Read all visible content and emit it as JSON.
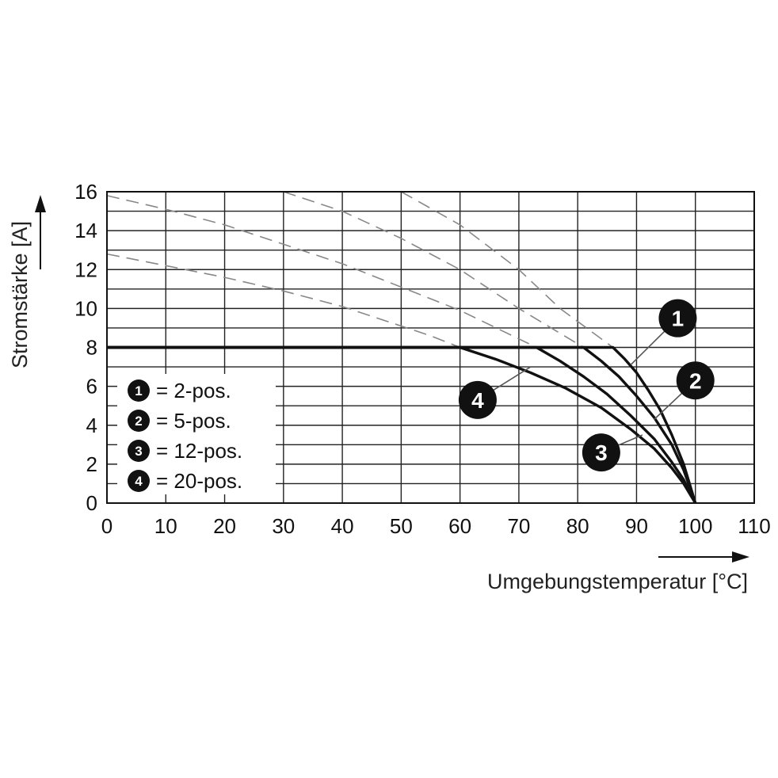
{
  "chart_data": {
    "type": "line",
    "xlabel": "Umgebungstemperatur [°C]",
    "ylabel": "Stromstärke [A]",
    "xlim": [
      0,
      110
    ],
    "ylim": [
      0,
      16
    ],
    "x_ticks": [
      "0",
      "10",
      "20",
      "30",
      "40",
      "50",
      "60",
      "70",
      "80",
      "90",
      "100",
      "110"
    ],
    "y_ticks": [
      "0",
      "2",
      "4",
      "6",
      "8",
      "10",
      "12",
      "14",
      "16"
    ],
    "grid": {
      "x_step": 10,
      "y_step": 1
    },
    "legend": {
      "placement": "lower-left",
      "entries": [
        {
          "badge": "1",
          "text": "= 2-pos."
        },
        {
          "badge": "2",
          "text": "= 5-pos."
        },
        {
          "badge": "3",
          "text": "= 12-pos."
        },
        {
          "badge": "4",
          "text": "= 20-pos."
        }
      ]
    },
    "series": [
      {
        "badge": "1",
        "style": "solid",
        "points": [
          [
            0,
            8
          ],
          [
            86,
            8
          ],
          [
            88,
            7.4
          ],
          [
            90,
            6.7
          ],
          [
            92,
            5.8
          ],
          [
            94,
            4.8
          ],
          [
            96,
            3.5
          ],
          [
            98,
            2.0
          ],
          [
            100,
            0
          ]
        ]
      },
      {
        "badge": "2",
        "style": "solid",
        "points": [
          [
            0,
            8
          ],
          [
            81,
            8
          ],
          [
            84,
            7.3
          ],
          [
            87,
            6.5
          ],
          [
            90,
            5.5
          ],
          [
            93,
            4.4
          ],
          [
            96,
            3.0
          ],
          [
            98,
            1.7
          ],
          [
            100,
            0
          ]
        ]
      },
      {
        "badge": "3",
        "style": "solid",
        "points": [
          [
            0,
            8
          ],
          [
            73,
            8
          ],
          [
            77,
            7.3
          ],
          [
            81,
            6.5
          ],
          [
            85,
            5.6
          ],
          [
            89,
            4.5
          ],
          [
            93,
            3.3
          ],
          [
            96,
            2.1
          ],
          [
            98,
            1.2
          ],
          [
            100,
            0
          ]
        ]
      },
      {
        "badge": "4",
        "style": "solid",
        "points": [
          [
            0,
            8
          ],
          [
            60,
            8
          ],
          [
            66,
            7.4
          ],
          [
            72,
            6.7
          ],
          [
            78,
            5.9
          ],
          [
            84,
            4.9
          ],
          [
            89,
            3.8
          ],
          [
            93,
            2.8
          ],
          [
            96,
            1.8
          ],
          [
            98,
            1.0
          ],
          [
            100,
            0
          ]
        ]
      },
      {
        "style": "dashed",
        "points": [
          [
            0,
            12.8
          ],
          [
            10,
            12.2
          ],
          [
            20,
            11.6
          ],
          [
            30,
            10.9
          ],
          [
            40,
            10.1
          ],
          [
            50,
            9.1
          ],
          [
            55,
            8.6
          ],
          [
            60,
            8.0
          ]
        ]
      },
      {
        "style": "dashed",
        "points": [
          [
            0,
            15.8
          ],
          [
            10,
            15.1
          ],
          [
            20,
            14.3
          ],
          [
            30,
            13.3
          ],
          [
            40,
            12.3
          ],
          [
            50,
            11.1
          ],
          [
            60,
            9.9
          ],
          [
            73,
            8.0
          ]
        ]
      },
      {
        "style": "dashed",
        "points": [
          [
            30,
            16.0
          ],
          [
            40,
            15.0
          ],
          [
            50,
            13.6
          ],
          [
            60,
            12.0
          ],
          [
            70,
            10.0
          ],
          [
            81,
            8.0
          ]
        ]
      },
      {
        "style": "dashed",
        "points": [
          [
            50,
            16.0
          ],
          [
            60,
            14.3
          ],
          [
            70,
            12.0
          ],
          [
            77,
            10.0
          ],
          [
            86,
            8.0
          ]
        ]
      }
    ],
    "callouts": [
      {
        "badge": "1",
        "at": [
          89,
          7.1
        ],
        "label_at": [
          97,
          9.5
        ]
      },
      {
        "badge": "2",
        "at": [
          93,
          4.3
        ],
        "label_at": [
          100,
          6.3
        ]
      },
      {
        "badge": "3",
        "at": [
          91,
          3.5
        ],
        "label_at": [
          84,
          2.6
        ]
      },
      {
        "badge": "4",
        "at": [
          72,
          7.0
        ],
        "label_at": [
          63,
          5.3
        ]
      }
    ]
  }
}
